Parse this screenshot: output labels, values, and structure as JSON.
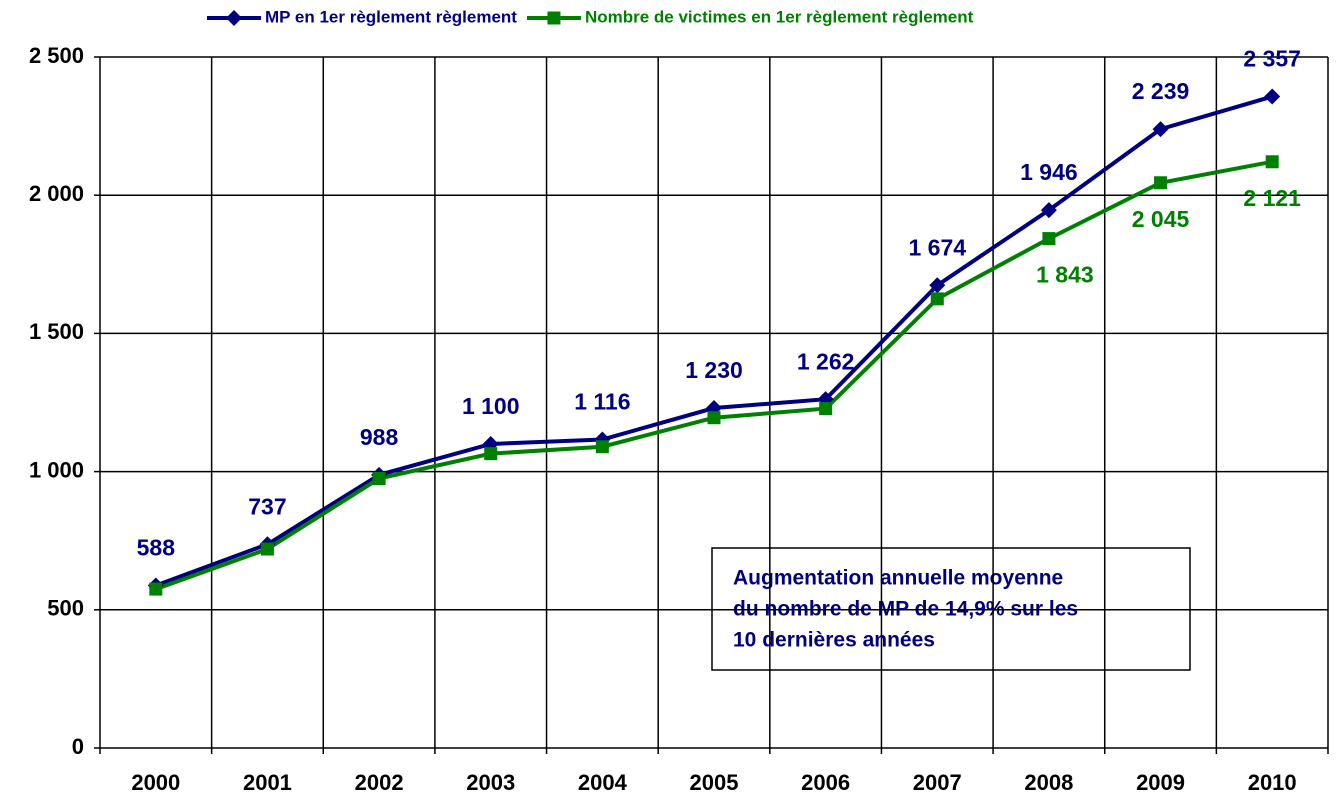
{
  "chart_data": {
    "type": "line",
    "categories": [
      "2000",
      "2001",
      "2002",
      "2003",
      "2004",
      "2005",
      "2006",
      "2007",
      "2008",
      "2009",
      "2010"
    ],
    "series": [
      {
        "name": "MP en 1er règlement règlement",
        "color": "#000080",
        "marker": "diamond",
        "values": [
          588,
          737,
          988,
          1100,
          1116,
          1230,
          1262,
          1674,
          1946,
          2239,
          2357
        ],
        "value_labels": [
          "588",
          "737",
          "988",
          "1 100",
          "1 116",
          "1 230",
          "1 262",
          "1 674",
          "1 946",
          "2 239",
          "2 357"
        ]
      },
      {
        "name": "Nombre de victimes en 1er règlement règlement",
        "color": "#008000",
        "marker": "square",
        "values": [
          575,
          720,
          975,
          1065,
          1090,
          1195,
          1228,
          1625,
          1843,
          2045,
          2121
        ],
        "value_labels": [
          null,
          null,
          null,
          null,
          null,
          null,
          null,
          null,
          "1 843",
          "2 045",
          "2 121"
        ]
      }
    ],
    "ylim": [
      0,
      2500
    ],
    "yticks": [
      0,
      500,
      {
        "value": 1000,
        "label": "1 000"
      },
      {
        "value": 1500,
        "label": "1 500"
      },
      {
        "value": 2000,
        "label": "2 000"
      },
      {
        "value": 2500,
        "label": "2 500"
      }
    ],
    "grid": true,
    "legend": "top",
    "annotation": [
      "Augmentation annuelle moyenne",
      "du nombre de MP de 14,9% sur les",
      "10 dernières années"
    ]
  }
}
